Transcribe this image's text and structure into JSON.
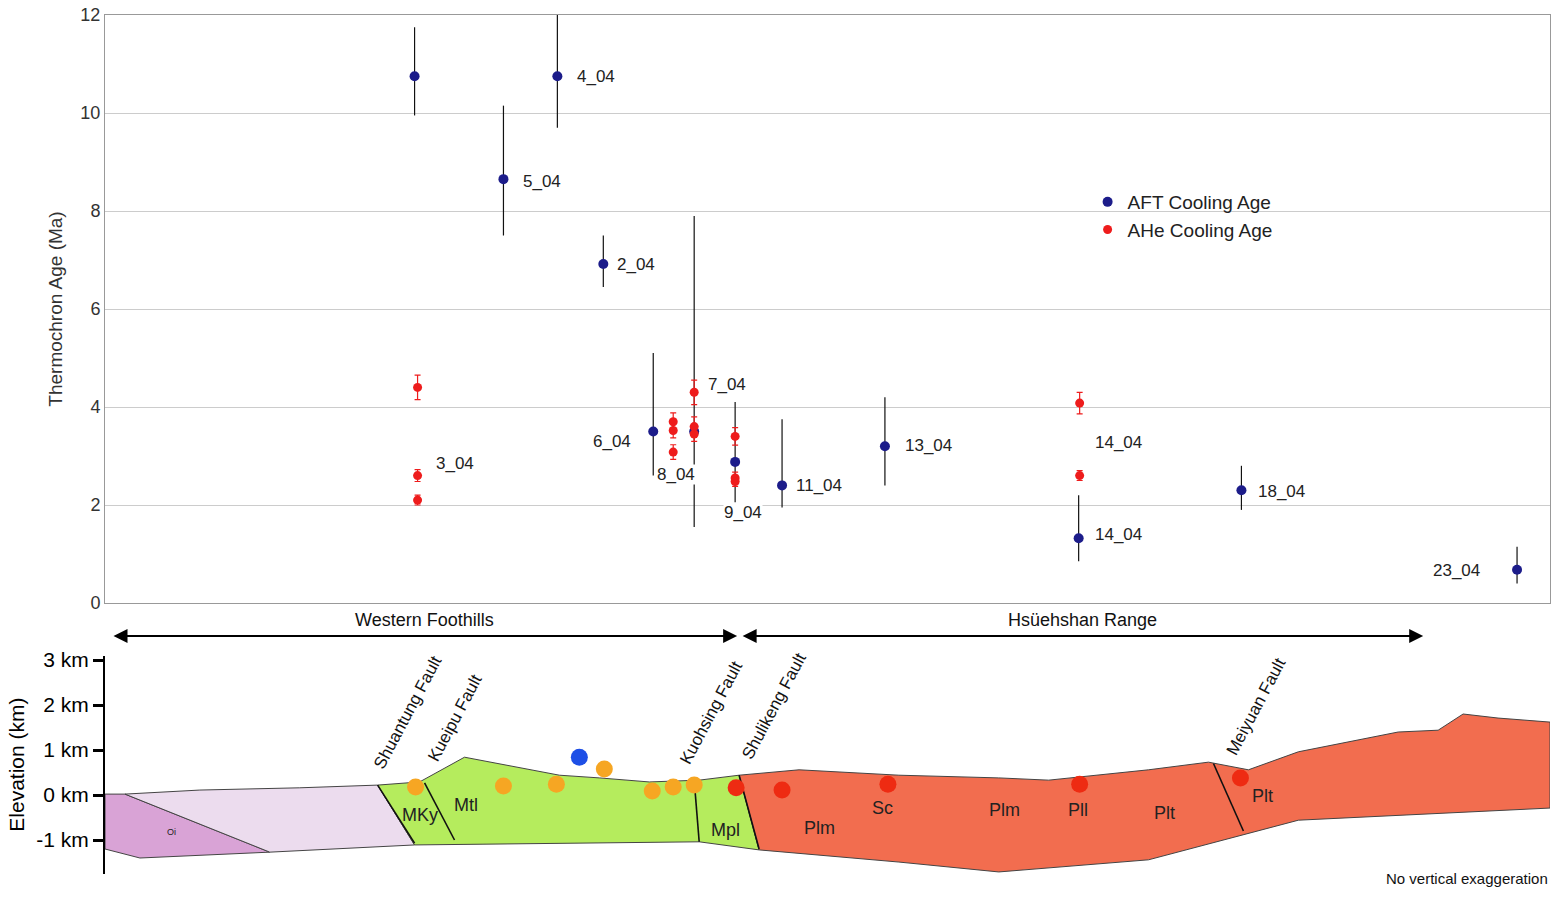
{
  "chart_data": [
    {
      "type": "scatter",
      "ylabel": "Thermochron Age (Ma)",
      "xlim": [
        105,
        1552
      ],
      "ylim": [
        0,
        12
      ],
      "yticks": [
        0,
        2,
        4,
        6,
        8,
        10,
        12
      ],
      "grid": true,
      "tick_labels": "y",
      "legend": "top right",
      "series": [
        {
          "name": "AFT Cooling Age",
          "color": "#1c1c8a",
          "marker": "circle",
          "x": [
            415,
            558,
            504,
            604,
            654,
            695,
            736,
            783,
            886,
            1080,
            1243,
            1519
          ],
          "values": [
            10.75,
            10.75,
            8.65,
            6.92,
            3.5,
            3.5,
            2.88,
            2.4,
            3.2,
            1.32,
            2.3,
            0.68
          ],
          "error_plus": [
            1.0,
            1.5,
            1.5,
            0.58,
            1.6,
            4.4,
            1.22,
            1.35,
            1.0,
            0.88,
            0.5,
            0.47
          ],
          "error_minus": [
            0.8,
            1.05,
            1.15,
            0.47,
            0.9,
            1.95,
            0.83,
            0.45,
            0.8,
            0.47,
            0.4,
            0.28
          ]
        },
        {
          "name": "AHe Cooling Age",
          "color": "#ee1c1c",
          "marker": "circle",
          "x": [
            418,
            418,
            418,
            674,
            674,
            674,
            695,
            695,
            695,
            736,
            736,
            736,
            1081,
            1081
          ],
          "values": [
            4.4,
            2.6,
            2.1,
            3.7,
            3.52,
            3.08,
            4.3,
            3.6,
            3.45,
            3.4,
            2.55,
            2.48,
            4.08,
            2.6
          ],
          "error_plus": [
            0.25,
            0.12,
            0.1,
            0.18,
            0.15,
            0.15,
            0.25,
            0.2,
            0.15,
            0.18,
            0.12,
            0.1,
            0.22,
            0.1
          ],
          "error_minus": [
            0.25,
            0.12,
            0.1,
            0.18,
            0.15,
            0.15,
            0.25,
            0.2,
            0.15,
            0.18,
            0.12,
            0.1,
            0.22,
            0.1
          ]
        }
      ],
      "annotations": [
        {
          "text": "3_04",
          "x": 455,
          "y": 2.84
        },
        {
          "text": "4_04",
          "x": 597,
          "y": 10.75
        },
        {
          "text": "5_04",
          "x": 543,
          "y": 8.6
        },
        {
          "text": "2_04",
          "x": 637,
          "y": 6.9
        },
        {
          "text": "7_04",
          "x": 728,
          "y": 4.45
        },
        {
          "text": "6_04",
          "x": 613,
          "y": 3.3
        },
        {
          "text": "8_04",
          "x": 677,
          "y": 2.63
        },
        {
          "text": "9_04",
          "x": 744,
          "y": 1.85
        },
        {
          "text": "11_04",
          "x": 820,
          "y": 2.39
        },
        {
          "text": "13_04",
          "x": 930,
          "y": 3.22
        },
        {
          "text": "14_04",
          "x": 1120,
          "y": 3.27
        },
        {
          "text": "14_04",
          "x": 1120,
          "y": 1.39
        },
        {
          "text": "18_04",
          "x": 1283,
          "y": 2.27
        },
        {
          "text": "23_04",
          "x": 1458,
          "y": 0.67
        }
      ]
    },
    {
      "type": "cross_section",
      "ylabel": "Elevation (km)",
      "xlim": [
        105,
        1552
      ],
      "ylim": [
        -1.75,
        3.1
      ],
      "yticks": [
        {
          "value": -1,
          "label": "-1 km"
        },
        {
          "value": 0,
          "label": "0 km"
        },
        {
          "value": 1,
          "label": "1 km"
        },
        {
          "value": 2,
          "label": "2 km"
        },
        {
          "value": 3,
          "label": "3 km"
        }
      ],
      "tick_labels": "y",
      "units": [
        {
          "color": "#d9a3d6",
          "points": [
            [
              105,
              0.02
            ],
            [
              125,
              0.02
            ],
            [
              270,
              -1.27
            ],
            [
              140,
              -1.4
            ],
            [
              105,
              -1.2
            ]
          ]
        },
        {
          "color": "#ecdcee",
          "points": [
            [
              125,
              0.02
            ],
            [
              200,
              0.11
            ],
            [
              300,
              0.16
            ],
            [
              378,
              0.22
            ],
            [
              415,
              -1.11
            ],
            [
              270,
              -1.27
            ]
          ]
        },
        {
          "color": "#b5ec5d",
          "points": [
            [
              378,
              0.22
            ],
            [
              420,
              0.29
            ],
            [
              465,
              0.84
            ],
            [
              520,
              0.6
            ],
            [
              560,
              0.44
            ],
            [
              600,
              0.38
            ],
            [
              650,
              0.29
            ],
            [
              700,
              0.33
            ],
            [
              740,
              0.44
            ],
            [
              760,
              -1.22
            ],
            [
              700,
              -1.04
            ],
            [
              415,
              -1.11
            ]
          ]
        },
        {
          "color": "#f26d4f",
          "points": [
            [
              740,
              0.44
            ],
            [
              800,
              0.56
            ],
            [
              900,
              0.44
            ],
            [
              1000,
              0.38
            ],
            [
              1050,
              0.33
            ],
            [
              1100,
              0.44
            ],
            [
              1150,
              0.56
            ],
            [
              1210,
              0.73
            ],
            [
              1250,
              0.56
            ],
            [
              1300,
              0.96
            ],
            [
              1400,
              1.4
            ],
            [
              1440,
              1.44
            ],
            [
              1465,
              1.8
            ],
            [
              1500,
              1.71
            ],
            [
              1552,
              1.62
            ],
            [
              1552,
              -0.29
            ],
            [
              1300,
              -0.56
            ],
            [
              1150,
              -1.44
            ],
            [
              1000,
              -1.71
            ],
            [
              900,
              -1.49
            ],
            [
              760,
              -1.22
            ]
          ]
        }
      ],
      "faults": [
        {
          "name": "Shuantung Fault",
          "points": [
            [
              378,
              0.22
            ],
            [
              415,
              -1.07
            ]
          ],
          "label_x": 408,
          "label_y": 1.84
        },
        {
          "name": "Kueipu Fault",
          "points": [
            [
              425,
              0.27
            ],
            [
              455,
              -1.0
            ]
          ],
          "label_x": 455,
          "label_y": 1.71
        },
        {
          "name": "Kuohsing Fault",
          "points": [
            [
              695,
              0.33
            ],
            [
              700,
              -1.04
            ]
          ],
          "label_x": 712,
          "label_y": 1.84
        },
        {
          "name": "Shulikeng Fault",
          "points": [
            [
              740,
              0.44
            ],
            [
              760,
              -1.2
            ]
          ],
          "label_x": 775,
          "label_y": 1.96
        },
        {
          "name": "Meiyuan Fault",
          "points": [
            [
              1215,
              0.7
            ],
            [
              1245,
              -0.8
            ]
          ],
          "label_x": 1258,
          "label_y": 1.96
        }
      ],
      "formations": [
        {
          "text": "Oi",
          "x": 172,
          "y": -0.82
        },
        {
          "text": "MKy",
          "x": 420,
          "y": -0.44
        },
        {
          "text": "Mtl",
          "x": 466,
          "y": -0.22
        },
        {
          "text": "Mpl",
          "x": 726,
          "y": -0.78
        },
        {
          "text": "Plm",
          "x": 820,
          "y": -0.73
        },
        {
          "text": "Sc",
          "x": 884,
          "y": -0.29
        },
        {
          "text": "Plm",
          "x": 1006,
          "y": -0.33
        },
        {
          "text": "Pll",
          "x": 1079,
          "y": -0.33
        },
        {
          "text": "Plt",
          "x": 1166,
          "y": -0.4
        },
        {
          "text": "Plt",
          "x": 1264,
          "y": -0.02
        }
      ],
      "samples": [
        {
          "color": "#f6a623",
          "x": [
            416,
            504,
            557,
            605,
            653,
            674,
            695
          ],
          "y": [
            0.18,
            0.2,
            0.24,
            0.58,
            0.09,
            0.18,
            0.22
          ]
        },
        {
          "color": "#1e4fe6",
          "x": [
            580
          ],
          "y": [
            0.84
          ]
        },
        {
          "color": "#ee2b12",
          "x": [
            737,
            783,
            889,
            1081,
            1242
          ],
          "y": [
            0.16,
            0.11,
            0.24,
            0.24,
            0.38
          ]
        }
      ],
      "regions": [
        {
          "text": "Western Foothills",
          "extent": [
            112,
            738
          ]
        },
        {
          "text": "Hsüehshan Range",
          "extent": [
            742,
            1425
          ]
        }
      ],
      "note": "No vertical exaggeration"
    }
  ]
}
